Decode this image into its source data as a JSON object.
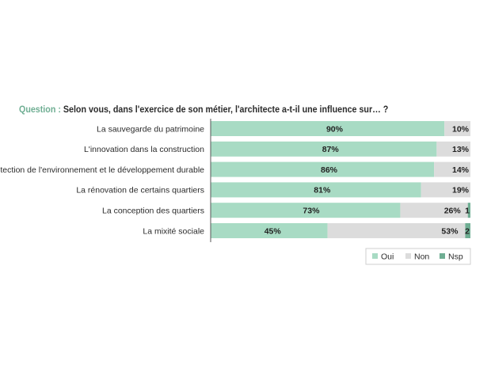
{
  "question": {
    "label": "Question :",
    "text": "Selon vous, dans l'exercice de son métier, l'architecte a-t-il une influence sur… ?"
  },
  "colors": {
    "oui": "#a8dbc4",
    "non": "#dcdcdc",
    "nsp": "#6fae93",
    "axis": "#555555"
  },
  "chart_data": {
    "type": "bar",
    "orientation": "horizontal",
    "stacked": true,
    "categories": [
      "La sauvegarde du patrimoine",
      "L'innovation dans la construction",
      "La protection de l'environnement et le développement durable",
      "La rénovation de certains quartiers",
      "La conception des quartiers",
      "La mixité sociale"
    ],
    "series": [
      {
        "name": "Oui",
        "color": "#a8dbc4",
        "values": [
          90,
          87,
          86,
          81,
          73,
          45
        ],
        "labels": [
          "90%",
          "87%",
          "86%",
          "81%",
          "73%",
          "45%"
        ]
      },
      {
        "name": "Non",
        "color": "#dcdcdc",
        "values": [
          10,
          13,
          14,
          19,
          26,
          53
        ],
        "labels": [
          "10%",
          "13%",
          "14%",
          "19%",
          "26%",
          "53%"
        ]
      },
      {
        "name": "Nsp",
        "color": "#6fae93",
        "values": [
          0,
          0,
          0,
          0,
          1,
          2
        ],
        "labels": [
          "",
          "",
          "",
          "",
          "1",
          "2"
        ]
      }
    ],
    "xlim": [
      0,
      100
    ],
    "legend_position": "bottom-right"
  }
}
